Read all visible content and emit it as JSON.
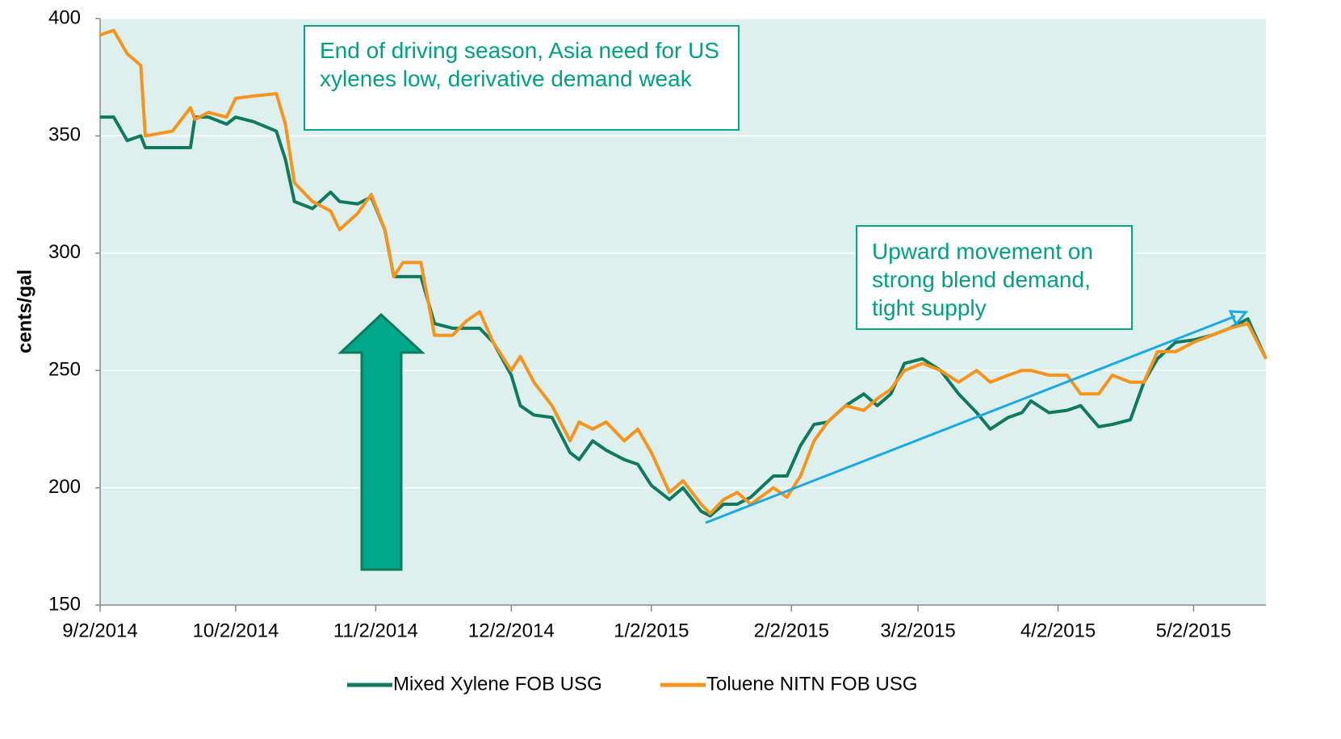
{
  "chart_data": {
    "type": "line",
    "ylabel": "cents/gal",
    "x": [
      "9/2/2014",
      "9/5/2014",
      "9/8/2014",
      "9/11/2014",
      "9/12/2014",
      "9/18/2014",
      "9/22/2014",
      "9/23/2014",
      "9/26/2014",
      "9/30/2014",
      "10/2/2014",
      "10/6/2014",
      "10/11/2014",
      "10/13/2014",
      "10/15/2014",
      "10/19/2014",
      "10/23/2014",
      "10/25/2014",
      "10/29/2014",
      "11/1/2014",
      "11/4/2014",
      "11/6/2014",
      "11/8/2014",
      "11/12/2014",
      "11/15/2014",
      "11/19/2014",
      "11/22/2014",
      "11/25/2014",
      "11/28/2014",
      "12/2/2014",
      "12/4/2014",
      "12/7/2014",
      "12/11/2014",
      "12/15/2014",
      "12/17/2014",
      "12/20/2014",
      "12/23/2014",
      "12/27/2014",
      "12/30/2014",
      "1/2/2015",
      "1/6/2015",
      "1/9/2015",
      "1/13/2015",
      "1/15/2015",
      "1/18/2015",
      "1/21/2015",
      "1/24/2015",
      "1/29/2015",
      "2/1/2015",
      "2/4/2015",
      "2/7/2015",
      "2/10/2015",
      "2/14/2015",
      "2/18/2015",
      "2/21/2015",
      "2/24/2015",
      "2/27/2015",
      "3/3/2015",
      "3/7/2015",
      "3/11/2015",
      "3/15/2015",
      "3/18/2015",
      "3/22/2015",
      "3/25/2015",
      "3/27/2015",
      "3/31/2015",
      "4/4/2015",
      "4/7/2015",
      "4/11/2015",
      "4/14/2015",
      "4/18/2015",
      "4/21/2015",
      "4/24/2015",
      "4/28/2015",
      "5/2/2015",
      "5/6/2015",
      "5/10/2015",
      "5/14/2015",
      "5/18/2015"
    ],
    "series": [
      {
        "name": "Mixed Xylene FOB USG",
        "color": "#0f7a5e",
        "values": [
          358,
          358,
          348,
          350,
          345,
          345,
          345,
          358,
          358,
          355,
          358,
          356,
          352,
          340,
          322,
          319,
          326,
          322,
          321,
          324,
          310,
          290,
          290,
          290,
          270,
          268,
          268,
          268,
          262,
          248,
          235,
          231,
          230,
          215,
          212,
          220,
          216,
          212,
          210,
          201,
          195,
          200,
          190,
          188,
          193,
          193,
          196,
          205,
          205,
          218,
          227,
          228,
          235,
          240,
          235,
          240,
          253,
          255,
          250,
          240,
          232,
          225,
          230,
          232,
          237,
          232,
          233,
          235,
          226,
          227,
          229,
          245,
          255,
          262,
          263,
          265,
          268,
          272,
          255
        ]
      },
      {
        "name": "Toluene NITN FOB USG",
        "color": "#f7941d",
        "values": [
          393,
          395,
          385,
          380,
          350,
          352,
          362,
          357,
          360,
          358,
          366,
          367,
          368,
          355,
          330,
          322,
          318,
          310,
          317,
          325,
          310,
          290,
          296,
          296,
          265,
          265,
          271,
          275,
          262,
          250,
          256,
          245,
          235,
          220,
          228,
          225,
          228,
          220,
          225,
          215,
          198,
          203,
          193,
          189,
          195,
          198,
          193,
          200,
          196,
          205,
          220,
          228,
          235,
          233,
          238,
          242,
          250,
          253,
          250,
          245,
          250,
          245,
          248,
          250,
          250,
          248,
          248,
          240,
          240,
          248,
          245,
          245,
          258,
          258,
          262,
          265,
          268,
          270,
          255
        ]
      }
    ],
    "xlim": [
      "9/2/2014",
      "5/18/2015"
    ],
    "xticks": [
      "9/2/2014",
      "10/2/2014",
      "11/2/2014",
      "12/2/2014",
      "1/2/2015",
      "2/2/2015",
      "3/2/2015",
      "4/2/2015",
      "5/2/2015"
    ],
    "ylim": [
      150,
      400
    ],
    "yticks": [
      150,
      200,
      250,
      300,
      350,
      400
    ],
    "grid": true,
    "annotations": [
      {
        "text": "End of driving season, Asia need for US xylenes low, derivative demand weak"
      },
      {
        "text": "Upward movement on strong blend demand, tight supply"
      }
    ]
  }
}
